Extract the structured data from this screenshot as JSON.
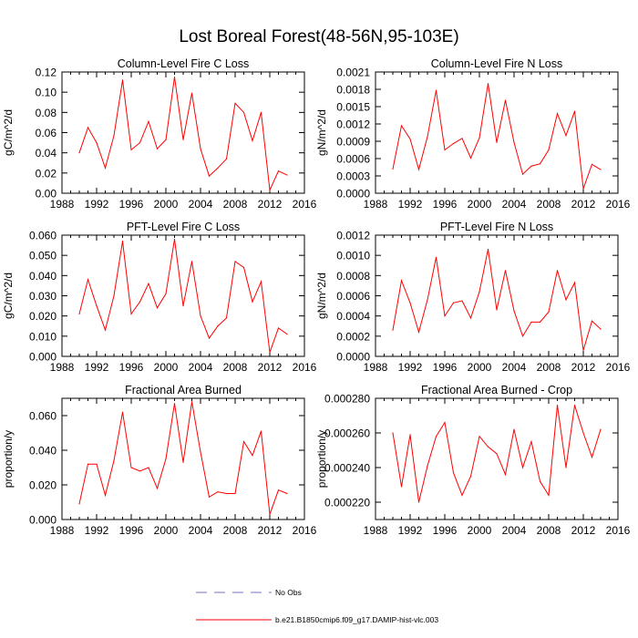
{
  "title": "Lost Boreal Forest(48-56N,95-103E)",
  "colors": {
    "series": "#ff0000",
    "legend_dash": "#7070c0",
    "axis": "#000000"
  },
  "legend": {
    "dashed_label": "No Obs",
    "solid_label": "b.e21.B1850cmip6.f09_g17.DAMIP-hist-vlc.003"
  },
  "chart_data": [
    {
      "type": "line",
      "title": "Column-Level Fire C Loss",
      "ylabel": "gC/m^2/d",
      "xlim": [
        1988,
        2016
      ],
      "xticks": [
        "1988",
        "1992",
        "1996",
        "2000",
        "2004",
        "2008",
        "2012",
        "2016"
      ],
      "ylim": [
        0,
        0.12
      ],
      "yticks": [
        "0.00",
        "0.02",
        "0.04",
        "0.06",
        "0.08",
        "0.10",
        "0.12"
      ],
      "x": [
        1990,
        1991,
        1992,
        1993,
        1994,
        1995,
        1996,
        1997,
        1998,
        1999,
        2000,
        2001,
        2002,
        2003,
        2004,
        2005,
        2006,
        2007,
        2008,
        2009,
        2010,
        2011,
        2012,
        2013,
        2014
      ],
      "values": [
        0.04,
        0.065,
        0.05,
        0.025,
        0.057,
        0.112,
        0.043,
        0.05,
        0.071,
        0.044,
        0.053,
        0.115,
        0.053,
        0.099,
        0.044,
        0.017,
        0.025,
        0.034,
        0.089,
        0.08,
        0.052,
        0.08,
        0.003,
        0.022,
        0.018
      ]
    },
    {
      "type": "line",
      "title": "Column-Level Fire N Loss",
      "ylabel": "gN/m^2/d",
      "xlim": [
        1988,
        2016
      ],
      "xticks": [
        "1988",
        "1992",
        "1996",
        "2000",
        "2004",
        "2008",
        "2012",
        "2016"
      ],
      "ylim": [
        0,
        0.0021
      ],
      "yticks": [
        "0.0000",
        "0.0003",
        "0.0006",
        "0.0009",
        "0.0012",
        "0.0015",
        "0.0018",
        "0.0021"
      ],
      "x": [
        1990,
        1991,
        1992,
        1993,
        1994,
        1995,
        1996,
        1997,
        1998,
        1999,
        2000,
        2001,
        2002,
        2003,
        2004,
        2005,
        2006,
        2007,
        2008,
        2009,
        2010,
        2011,
        2012,
        2013,
        2014
      ],
      "values": [
        0.00042,
        0.00117,
        0.00094,
        0.00041,
        0.00098,
        0.00178,
        0.00075,
        0.00086,
        0.00095,
        0.00061,
        0.00096,
        0.0019,
        0.00088,
        0.00161,
        0.00088,
        0.00033,
        0.00047,
        0.00051,
        0.00075,
        0.00138,
        0.001,
        0.00142,
        8e-05,
        0.0005,
        0.00041
      ]
    },
    {
      "type": "line",
      "title": "PFT-Level Fire C Loss",
      "ylabel": "gC/m^2/d",
      "xlim": [
        1988,
        2016
      ],
      "xticks": [
        "1988",
        "1992",
        "1996",
        "2000",
        "2004",
        "2008",
        "2012",
        "2016"
      ],
      "ylim": [
        0,
        0.06
      ],
      "yticks": [
        "0.000",
        "0.010",
        "0.020",
        "0.030",
        "0.040",
        "0.050",
        "0.060"
      ],
      "x": [
        1990,
        1991,
        1992,
        1993,
        1994,
        1995,
        1996,
        1997,
        1998,
        1999,
        2000,
        2001,
        2002,
        2003,
        2004,
        2005,
        2006,
        2007,
        2008,
        2009,
        2010,
        2011,
        2012,
        2013,
        2014
      ],
      "values": [
        0.021,
        0.038,
        0.025,
        0.013,
        0.03,
        0.057,
        0.021,
        0.027,
        0.036,
        0.024,
        0.031,
        0.058,
        0.025,
        0.047,
        0.02,
        0.009,
        0.015,
        0.019,
        0.047,
        0.044,
        0.027,
        0.037,
        0.002,
        0.014,
        0.011
      ]
    },
    {
      "type": "line",
      "title": "PFT-Level Fire N Loss",
      "ylabel": "gN/m^2/d",
      "xlim": [
        1988,
        2016
      ],
      "xticks": [
        "1988",
        "1992",
        "1996",
        "2000",
        "2004",
        "2008",
        "2012",
        "2016"
      ],
      "ylim": [
        0,
        0.0012
      ],
      "yticks": [
        "0.0000",
        "0.0002",
        "0.0004",
        "0.0006",
        "0.0008",
        "0.0010",
        "0.0012"
      ],
      "x": [
        1990,
        1991,
        1992,
        1993,
        1994,
        1995,
        1996,
        1997,
        1998,
        1999,
        2000,
        2001,
        2002,
        2003,
        2004,
        2005,
        2006,
        2007,
        2008,
        2009,
        2010,
        2011,
        2012,
        2013,
        2014
      ],
      "values": [
        0.00026,
        0.00075,
        0.00053,
        0.00024,
        0.00056,
        0.00098,
        0.0004,
        0.00053,
        0.00055,
        0.00038,
        0.00064,
        0.00106,
        0.00046,
        0.00085,
        0.00045,
        0.0002,
        0.00034,
        0.00034,
        0.00044,
        0.00085,
        0.00056,
        0.00073,
        6e-05,
        0.00035,
        0.00027
      ]
    },
    {
      "type": "line",
      "title": "Fractional Area Burned",
      "ylabel": "proportion/y",
      "xlim": [
        1988,
        2016
      ],
      "xticks": [
        "1988",
        "1992",
        "1996",
        "2000",
        "2004",
        "2008",
        "2012",
        "2016"
      ],
      "ylim": [
        0,
        0.07
      ],
      "yticks": [
        "0.000",
        "0.020",
        "0.040",
        "0.060"
      ],
      "ytick_values": [
        0,
        0.02,
        0.04,
        0.06
      ],
      "x": [
        1990,
        1991,
        1992,
        1993,
        1994,
        1995,
        1996,
        1997,
        1998,
        1999,
        2000,
        2001,
        2002,
        2003,
        2004,
        2005,
        2006,
        2007,
        2008,
        2009,
        2010,
        2011,
        2012,
        2013,
        2014
      ],
      "values": [
        0.009,
        0.032,
        0.032,
        0.014,
        0.034,
        0.062,
        0.03,
        0.028,
        0.03,
        0.018,
        0.035,
        0.067,
        0.033,
        0.068,
        0.039,
        0.013,
        0.016,
        0.015,
        0.015,
        0.045,
        0.037,
        0.051,
        0.003,
        0.017,
        0.015
      ]
    },
    {
      "type": "line",
      "title": "Fractional Area Burned - Crop",
      "ylabel": "proportion/y",
      "xlim": [
        1988,
        2016
      ],
      "xticks": [
        "1988",
        "1992",
        "1996",
        "2000",
        "2004",
        "2008",
        "2012",
        "2016"
      ],
      "ylim": [
        0.00021,
        0.00028
      ],
      "yticks": [
        "0.000220",
        "0.000240",
        "0.000260",
        "0.000280"
      ],
      "ytick_values": [
        0.00022,
        0.00024,
        0.00026,
        0.00028
      ],
      "x": [
        1990,
        1991,
        1992,
        1993,
        1994,
        1995,
        1996,
        1997,
        1998,
        1999,
        2000,
        2001,
        2002,
        2003,
        2004,
        2005,
        2006,
        2007,
        2008,
        2009,
        2010,
        2011,
        2012,
        2013,
        2014
      ],
      "values": [
        0.00026,
        0.000229,
        0.000259,
        0.00022,
        0.000241,
        0.000258,
        0.000266,
        0.000237,
        0.000224,
        0.000235,
        0.000258,
        0.000252,
        0.000248,
        0.000236,
        0.000262,
        0.00024,
        0.000255,
        0.000232,
        0.000224,
        0.000276,
        0.00024,
        0.000276,
        0.00026,
        0.000246,
        0.000262
      ]
    }
  ]
}
